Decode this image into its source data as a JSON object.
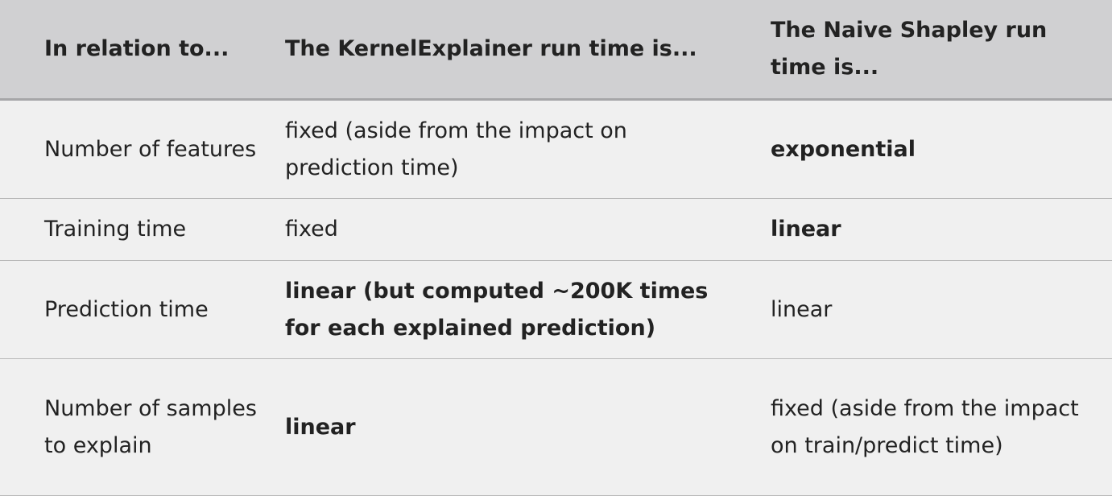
{
  "table": {
    "headers": [
      "In relation to...",
      "The KernelExplainer run time is...",
      "The Naive Shapley run time is..."
    ],
    "rows": [
      {
        "relation": "Number of features",
        "kernel": "fixed (aside from the impact on prediction time)",
        "kernel_bold": false,
        "naive": "exponential",
        "naive_bold": true
      },
      {
        "relation": "Training time",
        "kernel": "fixed",
        "kernel_bold": false,
        "naive": "linear",
        "naive_bold": true
      },
      {
        "relation": "Prediction time",
        "kernel": "linear (but computed ~200K times for each explained prediction)",
        "kernel_bold": true,
        "naive": "linear",
        "naive_bold": false
      },
      {
        "relation": "Number of samples to explain",
        "kernel": "linear",
        "kernel_bold": true,
        "naive": "fixed (aside from the impact on train/predict time)",
        "naive_bold": false
      }
    ]
  }
}
